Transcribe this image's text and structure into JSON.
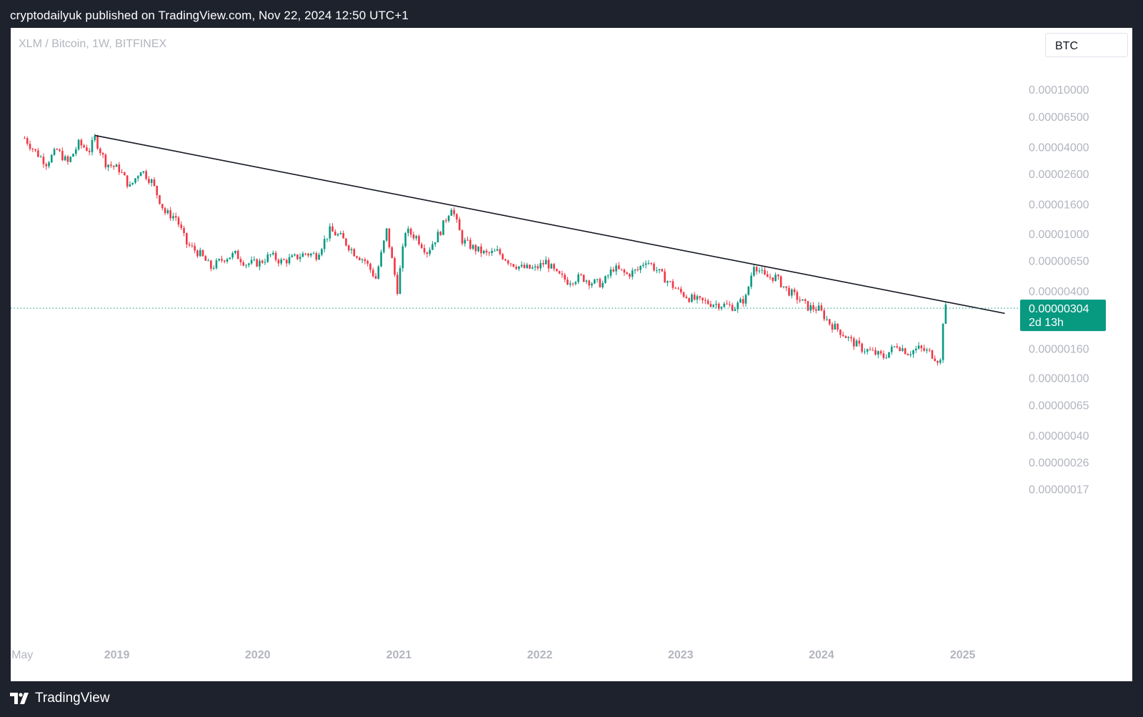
{
  "header": {
    "publisher": "cryptodailyuk published on TradingView.com, Nov 22, 2024 12:50 UTC+1"
  },
  "chart": {
    "symbol_label": "XLM / Bitcoin, 1W, BITFINEX",
    "currency_button": "BTC",
    "last_price_label": "0.00000304",
    "countdown_label": "2d 13h"
  },
  "footer": {
    "brand": "TradingView"
  },
  "colors": {
    "up": "#089981",
    "down": "#f23645",
    "trendline": "#131722",
    "price_line": "#089981"
  },
  "chart_data": {
    "type": "candlestick",
    "title": "XLM / Bitcoin, 1W, BITFINEX",
    "scale": "log",
    "ylim": [
      1.3e-08,
      0.00016
    ],
    "y_ticks": [
      {
        "value": 0.0001,
        "label": "0.00010000"
      },
      {
        "value": 6.5e-05,
        "label": "0.00006500"
      },
      {
        "value": 4e-05,
        "label": "0.00004000"
      },
      {
        "value": 2.6e-05,
        "label": "0.00002600"
      },
      {
        "value": 1.6e-05,
        "label": "0.00001600"
      },
      {
        "value": 1e-05,
        "label": "0.00001000"
      },
      {
        "value": 6.5e-06,
        "label": "0.00000650"
      },
      {
        "value": 4e-06,
        "label": "0.00000400"
      },
      {
        "value": 1.6e-06,
        "label": "0.00000160"
      },
      {
        "value": 1e-06,
        "label": "0.00000100"
      },
      {
        "value": 6.5e-07,
        "label": "0.00000065"
      },
      {
        "value": 4e-07,
        "label": "0.00000040"
      },
      {
        "value": 2.6e-07,
        "label": "0.00000026"
      },
      {
        "value": 1.7e-07,
        "label": "0.00000017"
      }
    ],
    "x_ticks": [
      {
        "date": "2018-05-01",
        "label": "May"
      },
      {
        "date": "2019-01-01",
        "label": "2019"
      },
      {
        "date": "2020-01-01",
        "label": "2020"
      },
      {
        "date": "2021-01-01",
        "label": "2021"
      },
      {
        "date": "2022-01-01",
        "label": "2022"
      },
      {
        "date": "2023-01-01",
        "label": "2023"
      },
      {
        "date": "2024-01-01",
        "label": "2024"
      },
      {
        "date": "2025-01-01",
        "label": "2025"
      }
    ],
    "xlim": [
      "2018-04-01",
      "2025-05-15"
    ],
    "last_price": 3.04e-06,
    "trendline": [
      {
        "date": "2018-11-05",
        "value": 4.8e-05
      },
      {
        "date": "2025-04-20",
        "value": 2.8e-06
      }
    ],
    "series": [
      {
        "date": "2018-05-07",
        "value": 4.6e-05
      },
      {
        "date": "2018-06-04",
        "value": 3.7e-05
      },
      {
        "date": "2018-07-02",
        "value": 3.1e-05
      },
      {
        "date": "2018-07-30",
        "value": 3.8e-05
      },
      {
        "date": "2018-08-27",
        "value": 3.1e-05
      },
      {
        "date": "2018-09-24",
        "value": 4.2e-05
      },
      {
        "date": "2018-10-22",
        "value": 3.8e-05
      },
      {
        "date": "2018-11-05",
        "value": 4.6e-05
      },
      {
        "date": "2018-12-03",
        "value": 3.1e-05
      },
      {
        "date": "2019-01-07",
        "value": 2.8e-05
      },
      {
        "date": "2019-02-04",
        "value": 2.1e-05
      },
      {
        "date": "2019-03-04",
        "value": 2.8e-05
      },
      {
        "date": "2019-04-01",
        "value": 2.3e-05
      },
      {
        "date": "2019-05-06",
        "value": 1.4e-05
      },
      {
        "date": "2019-06-03",
        "value": 1.3e-05
      },
      {
        "date": "2019-07-01",
        "value": 8.5e-06
      },
      {
        "date": "2019-08-05",
        "value": 7.2e-06
      },
      {
        "date": "2019-09-02",
        "value": 5.8e-06
      },
      {
        "date": "2019-10-07",
        "value": 6.8e-06
      },
      {
        "date": "2019-11-04",
        "value": 7.2e-06
      },
      {
        "date": "2019-12-02",
        "value": 6.2e-06
      },
      {
        "date": "2020-01-06",
        "value": 6.3e-06
      },
      {
        "date": "2020-02-03",
        "value": 7.1e-06
      },
      {
        "date": "2020-03-02",
        "value": 6.4e-06
      },
      {
        "date": "2020-04-06",
        "value": 6.8e-06
      },
      {
        "date": "2020-05-04",
        "value": 7.3e-06
      },
      {
        "date": "2020-06-01",
        "value": 7.1e-06
      },
      {
        "date": "2020-07-06",
        "value": 1.05e-05
      },
      {
        "date": "2020-08-03",
        "value": 9.5e-06
      },
      {
        "date": "2020-09-07",
        "value": 7.4e-06
      },
      {
        "date": "2020-10-05",
        "value": 6.5e-06
      },
      {
        "date": "2020-11-02",
        "value": 4.9e-06
      },
      {
        "date": "2020-11-30",
        "value": 1.05e-05
      },
      {
        "date": "2020-12-28",
        "value": 4.1e-06
      },
      {
        "date": "2021-01-18",
        "value": 1.05e-05
      },
      {
        "date": "2021-02-15",
        "value": 9.5e-06
      },
      {
        "date": "2021-03-15",
        "value": 7.5e-06
      },
      {
        "date": "2021-04-19",
        "value": 1.05e-05
      },
      {
        "date": "2021-05-17",
        "value": 1.55e-05
      },
      {
        "date": "2021-06-14",
        "value": 9e-06
      },
      {
        "date": "2021-07-12",
        "value": 8e-06
      },
      {
        "date": "2021-08-16",
        "value": 7.2e-06
      },
      {
        "date": "2021-09-13",
        "value": 7.5e-06
      },
      {
        "date": "2021-10-18",
        "value": 6.3e-06
      },
      {
        "date": "2021-11-15",
        "value": 5.8e-06
      },
      {
        "date": "2021-12-20",
        "value": 5.7e-06
      },
      {
        "date": "2022-01-17",
        "value": 6.4e-06
      },
      {
        "date": "2022-02-14",
        "value": 5.2e-06
      },
      {
        "date": "2022-03-14",
        "value": 4.7e-06
      },
      {
        "date": "2022-04-18",
        "value": 5e-06
      },
      {
        "date": "2022-05-16",
        "value": 4.6e-06
      },
      {
        "date": "2022-06-13",
        "value": 4.5e-06
      },
      {
        "date": "2022-07-11",
        "value": 5.8e-06
      },
      {
        "date": "2022-08-15",
        "value": 5.2e-06
      },
      {
        "date": "2022-09-12",
        "value": 5.6e-06
      },
      {
        "date": "2022-10-03",
        "value": 6.6e-06
      },
      {
        "date": "2022-10-31",
        "value": 5.6e-06
      },
      {
        "date": "2022-11-28",
        "value": 4.7e-06
      },
      {
        "date": "2022-12-26",
        "value": 4e-06
      },
      {
        "date": "2023-01-23",
        "value": 3.6e-06
      },
      {
        "date": "2023-02-20",
        "value": 3.4e-06
      },
      {
        "date": "2023-03-20",
        "value": 3.3e-06
      },
      {
        "date": "2023-04-24",
        "value": 3.2e-06
      },
      {
        "date": "2023-05-22",
        "value": 3.1e-06
      },
      {
        "date": "2023-06-19",
        "value": 3.6e-06
      },
      {
        "date": "2023-07-10",
        "value": 6.2e-06
      },
      {
        "date": "2023-08-07",
        "value": 5e-06
      },
      {
        "date": "2023-09-04",
        "value": 5e-06
      },
      {
        "date": "2023-10-02",
        "value": 4.1e-06
      },
      {
        "date": "2023-10-30",
        "value": 3.6e-06
      },
      {
        "date": "2023-11-27",
        "value": 3.1e-06
      },
      {
        "date": "2023-12-25",
        "value": 3e-06
      },
      {
        "date": "2024-01-22",
        "value": 2.4e-06
      },
      {
        "date": "2024-02-19",
        "value": 2.1e-06
      },
      {
        "date": "2024-03-18",
        "value": 1.8e-06
      },
      {
        "date": "2024-04-15",
        "value": 1.6e-06
      },
      {
        "date": "2024-05-13",
        "value": 1.5e-06
      },
      {
        "date": "2024-06-10",
        "value": 1.4e-06
      },
      {
        "date": "2024-07-15",
        "value": 1.7e-06
      },
      {
        "date": "2024-08-12",
        "value": 1.5e-06
      },
      {
        "date": "2024-09-09",
        "value": 1.6e-06
      },
      {
        "date": "2024-10-07",
        "value": 1.5e-06
      },
      {
        "date": "2024-11-04",
        "value": 1.3e-06
      },
      {
        "date": "2024-11-11",
        "value": 2.5e-06
      },
      {
        "date": "2024-11-18",
        "value": 3.04e-06
      }
    ]
  }
}
